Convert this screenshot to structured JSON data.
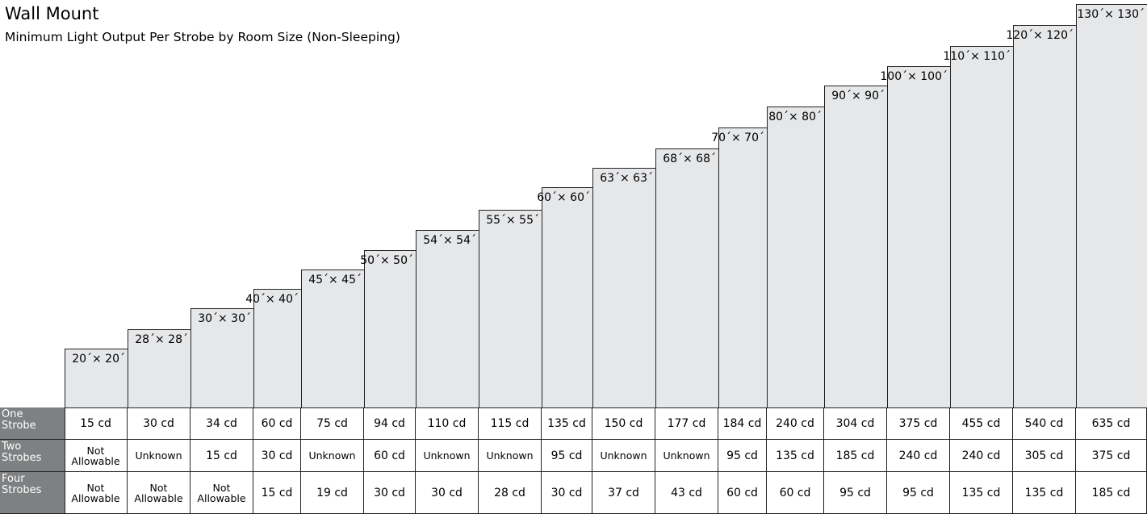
{
  "header": {
    "title": "Wall Mount",
    "subtitle": "Minimum Light Output Per Strobe by Room Size (Non-Sleeping)"
  },
  "room_sizes": [
    "20´× 20´",
    "28´× 28´",
    "30´× 30´",
    "40´× 40´",
    "45´× 45´",
    "50´× 50´",
    "54´× 54´",
    "55´× 55´",
    "60´× 60´",
    "63´× 63´",
    "68´× 68´",
    "70´× 70´",
    "80´× 80´",
    "90´× 90´",
    "100´× 100´",
    "110´× 110´",
    "120´× 120´",
    "130´× 130´"
  ],
  "rows": [
    {
      "label": "One Strobe",
      "values": [
        "15 cd",
        "30 cd",
        "34 cd",
        "60 cd",
        "75 cd",
        "94 cd",
        "110 cd",
        "115 cd",
        "135 cd",
        "150 cd",
        "177 cd",
        "184 cd",
        "240 cd",
        "304 cd",
        "375 cd",
        "455 cd",
        "540 cd",
        "635 cd"
      ]
    },
    {
      "label": "Two Strobes",
      "values": [
        "Not Allowable",
        "Unknown",
        "15 cd",
        "30 cd",
        "Unknown",
        "60 cd",
        "Unknown",
        "Unknown",
        "95 cd",
        "Unknown",
        "Unknown",
        "95 cd",
        "135 cd",
        "185 cd",
        "240 cd",
        "240 cd",
        "305 cd",
        "375 cd"
      ]
    },
    {
      "label": "Four Strobes",
      "values": [
        "Not Allowable",
        "Not Allowable",
        "Not Allowable",
        "15 cd",
        "19 cd",
        "30 cd",
        "30 cd",
        "28 cd",
        "30 cd",
        "37 cd",
        "43 cd",
        "60 cd",
        "60 cd",
        "95 cd",
        "95 cd",
        "135 cd",
        "135 cd",
        "185 cd"
      ]
    }
  ],
  "colors": {
    "room_fill": "#e6e7e9",
    "header_fill": "#7f8082",
    "line": "#222222"
  }
}
